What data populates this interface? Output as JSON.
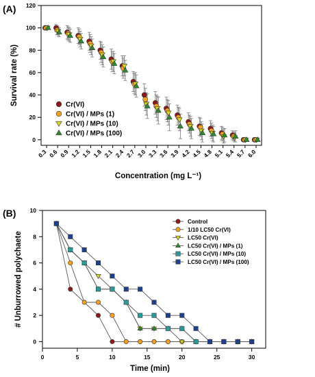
{
  "figure": {
    "panel_a_label": "(A)",
    "panel_b_label": "(B)"
  },
  "chart_data": [
    {
      "type": "scatter",
      "panel": "(A)",
      "title": "",
      "xlabel": "Concentration (mg L⁻¹)",
      "ylabel": "Survival rate (%)",
      "x": [
        0.3,
        0.6,
        0.9,
        1.2,
        1.5,
        1.8,
        2.1,
        2.4,
        2.7,
        3.0,
        3.3,
        3.6,
        3.9,
        4.2,
        4.5,
        4.8,
        5.1,
        5.4,
        5.7,
        6.0
      ],
      "x_tick_labels": [
        "0.3",
        "0.6",
        "0.9",
        "1.2",
        "1.5",
        "1.8",
        "2.1",
        "2.4",
        "2.7",
        "3.0",
        "3.3",
        "3.6",
        "3.9",
        "4.2",
        "4.5",
        "4.8",
        "5.1",
        "5.4",
        "5.7",
        "6.0"
      ],
      "ylim": [
        -5,
        120
      ],
      "yticks": [
        0,
        20,
        40,
        60,
        80,
        100,
        120
      ],
      "grid": false,
      "legend_position": "lower-left",
      "series": [
        {
          "name": "Cr(VI)",
          "color": "#8B1A1A",
          "marker": "circle",
          "values": [
            100,
            100,
            96,
            93,
            88,
            80,
            72,
            66,
            52,
            40,
            33,
            28,
            22,
            16,
            12,
            10,
            6,
            4,
            0,
            0
          ],
          "errors": [
            0,
            3,
            6,
            7,
            8,
            8,
            9,
            9,
            9,
            10,
            10,
            10,
            9,
            8,
            8,
            7,
            6,
            4,
            0,
            0
          ]
        },
        {
          "name": "Cr(VI) / MPs (1)",
          "color": "#F4A020",
          "marker": "circle",
          "values": [
            100,
            98,
            95,
            92,
            86,
            78,
            70,
            64,
            50,
            36,
            30,
            26,
            20,
            14,
            11,
            8,
            5,
            3,
            0,
            0
          ],
          "errors": [
            0,
            4,
            6,
            7,
            8,
            9,
            9,
            9,
            9,
            10,
            10,
            10,
            9,
            8,
            8,
            7,
            6,
            4,
            0,
            0
          ]
        },
        {
          "name": "Cr(VI) / MPs (10)",
          "color": "#D8D820",
          "marker": "triangle-down",
          "values": [
            100,
            97,
            94,
            90,
            84,
            76,
            70,
            66,
            50,
            32,
            28,
            24,
            18,
            12,
            8,
            6,
            3,
            2,
            0,
            0
          ],
          "errors": [
            0,
            4,
            6,
            7,
            8,
            9,
            9,
            9,
            10,
            10,
            11,
            11,
            10,
            9,
            8,
            7,
            6,
            4,
            0,
            0
          ]
        },
        {
          "name": "Cr(VI) / MPs (100)",
          "color": "#2E8B2E",
          "marker": "triangle-up",
          "values": [
            100,
            96,
            93,
            88,
            82,
            74,
            68,
            62,
            48,
            30,
            26,
            20,
            12,
            10,
            6,
            5,
            4,
            3,
            0,
            0
          ],
          "errors": [
            0,
            4,
            6,
            7,
            8,
            9,
            9,
            9,
            10,
            11,
            12,
            12,
            11,
            9,
            8,
            7,
            6,
            5,
            0,
            0
          ]
        }
      ]
    },
    {
      "type": "line",
      "panel": "(B)",
      "title": "",
      "xlabel": "Time (min)",
      "ylabel": "# Unburrowed polychaete",
      "xlim": [
        0,
        32
      ],
      "ylim": [
        -0.5,
        10
      ],
      "xticks": [
        0,
        5,
        10,
        15,
        20,
        25,
        30
      ],
      "yticks": [
        0,
        2,
        4,
        6,
        8,
        10
      ],
      "grid": false,
      "legend_position": "top-right",
      "series": [
        {
          "name": "Control",
          "color": "#8B1A1A",
          "marker": "circle",
          "x": [
            2,
            4,
            8,
            10,
            12,
            14,
            16,
            18,
            20,
            22,
            24,
            26,
            28,
            30
          ],
          "y": [
            9,
            4,
            2,
            0,
            0,
            0,
            0,
            0,
            0,
            0,
            0,
            0,
            0,
            0
          ]
        },
        {
          "name": "1/10 LC50 Cr(VI)",
          "color": "#F4A020",
          "marker": "circle",
          "x": [
            2,
            4,
            6,
            8,
            10,
            12,
            14,
            16,
            18,
            20,
            22,
            24,
            26,
            28,
            30
          ],
          "y": [
            9,
            6,
            3,
            3,
            2,
            0,
            0,
            0,
            0,
            0,
            0,
            0,
            0,
            0,
            0
          ]
        },
        {
          "name": "LC50 Cr(VI)",
          "color": "#D8D820",
          "marker": "triangle-down",
          "x": [
            2,
            4,
            6,
            8,
            10,
            12,
            14,
            16,
            18,
            20,
            22,
            24,
            26,
            28,
            30
          ],
          "y": [
            9,
            7,
            6,
            5,
            4,
            3,
            1,
            1,
            1,
            0,
            0,
            0,
            0,
            0,
            0
          ]
        },
        {
          "name": "LC50 Cr(VI) / MPs (1)",
          "color": "#2E8B2E",
          "marker": "triangle-up",
          "x": [
            2,
            4,
            6,
            8,
            10,
            12,
            14,
            16,
            18,
            20,
            22,
            24,
            26,
            28,
            30
          ],
          "y": [
            9,
            7,
            6,
            4,
            4,
            3,
            1,
            1,
            1,
            1,
            0,
            0,
            0,
            0,
            0
          ]
        },
        {
          "name": "LC50 Cr(VI) / MPs (10)",
          "color": "#2A9A9A",
          "marker": "square",
          "x": [
            2,
            4,
            6,
            8,
            10,
            12,
            14,
            16,
            18,
            20,
            22,
            24,
            26,
            28,
            30
          ],
          "y": [
            9,
            7,
            6,
            4,
            4,
            3,
            2,
            2,
            1,
            1,
            0,
            0,
            0,
            0,
            0
          ]
        },
        {
          "name": "LC50 Cr(VI) / MPs (100)",
          "color": "#1F3F8F",
          "marker": "square",
          "x": [
            2,
            4,
            6,
            8,
            10,
            12,
            14,
            16,
            18,
            20,
            22,
            24,
            26,
            28,
            30
          ],
          "y": [
            9,
            8,
            7,
            6,
            5,
            4,
            4,
            3,
            2,
            2,
            1,
            0,
            0,
            0,
            0
          ]
        }
      ]
    }
  ]
}
